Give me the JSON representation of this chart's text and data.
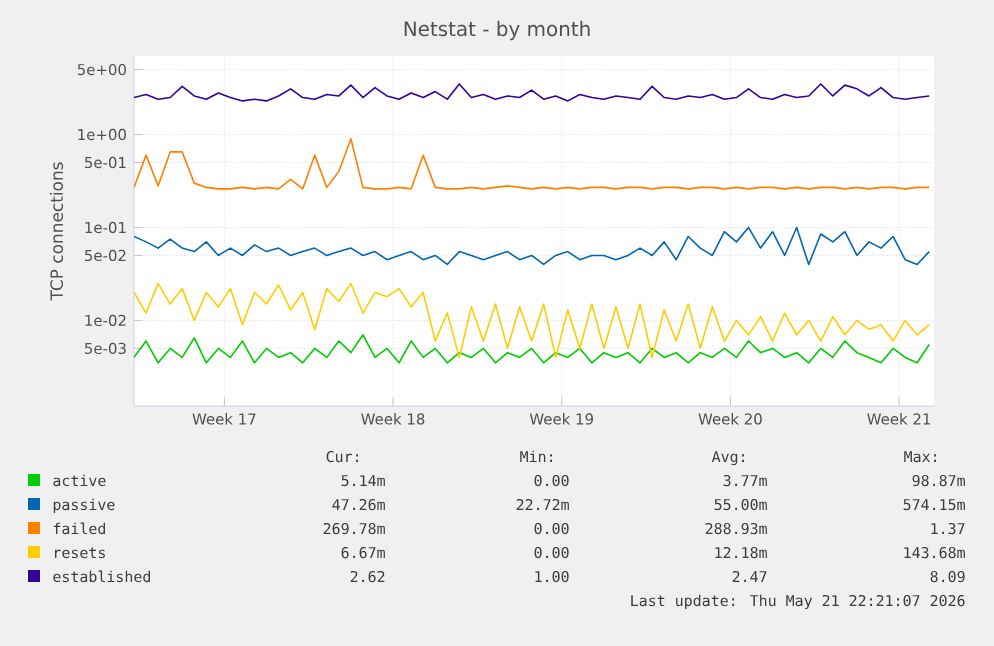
{
  "chart_data": {
    "type": "line",
    "title": "Netstat - by month",
    "ylabel": "TCP connections",
    "log": "y",
    "grid": true,
    "legend": "bottom",
    "marker": "none",
    "line_style": "solid",
    "xlim": [
      "2026-04-19T00:00",
      "2026-05-22T04:48"
    ],
    "xticks": [
      {
        "value": "2026-04-22T18:00",
        "label": "Week 17"
      },
      {
        "value": "2026-04-29T18:00",
        "label": "Week 18"
      },
      {
        "value": "2026-05-06T18:00",
        "label": "Week 19"
      },
      {
        "value": "2026-05-13T18:00",
        "label": "Week 20"
      },
      {
        "value": "2026-05-20T18:00",
        "label": "Week 21"
      }
    ],
    "ylim": [
      0.0012,
      7
    ],
    "yticks": [
      {
        "value": 0.005,
        "label": "5e-03"
      },
      {
        "value": 0.01,
        "label": "1e-02"
      },
      {
        "value": 0.05,
        "label": "5e-02"
      },
      {
        "value": 0.1,
        "label": "1e-01"
      },
      {
        "value": 0.5,
        "label": "5e-01"
      },
      {
        "value": 1,
        "label": "1e+00"
      },
      {
        "value": 5,
        "label": "5e+00"
      }
    ],
    "x": [
      "2026-04-19T00:00",
      "2026-04-19T12:00",
      "2026-04-20T00:00",
      "2026-04-20T12:00",
      "2026-04-21T00:00",
      "2026-04-21T12:00",
      "2026-04-22T00:00",
      "2026-04-22T12:00",
      "2026-04-23T00:00",
      "2026-04-23T12:00",
      "2026-04-24T00:00",
      "2026-04-24T12:00",
      "2026-04-25T00:00",
      "2026-04-25T12:00",
      "2026-04-26T00:00",
      "2026-04-26T12:00",
      "2026-04-27T00:00",
      "2026-04-27T12:00",
      "2026-04-28T00:00",
      "2026-04-28T12:00",
      "2026-04-29T00:00",
      "2026-04-29T12:00",
      "2026-04-30T00:00",
      "2026-04-30T12:00",
      "2026-05-01T00:00",
      "2026-05-01T12:00",
      "2026-05-02T00:00",
      "2026-05-02T12:00",
      "2026-05-03T00:00",
      "2026-05-03T12:00",
      "2026-05-04T00:00",
      "2026-05-04T12:00",
      "2026-05-05T00:00",
      "2026-05-05T12:00",
      "2026-05-06T00:00",
      "2026-05-06T12:00",
      "2026-05-07T00:00",
      "2026-05-07T12:00",
      "2026-05-08T00:00",
      "2026-05-08T12:00",
      "2026-05-09T00:00",
      "2026-05-09T12:00",
      "2026-05-10T00:00",
      "2026-05-10T12:00",
      "2026-05-11T00:00",
      "2026-05-11T12:00",
      "2026-05-12T00:00",
      "2026-05-12T12:00",
      "2026-05-13T00:00",
      "2026-05-13T12:00",
      "2026-05-14T00:00",
      "2026-05-14T12:00",
      "2026-05-15T00:00",
      "2026-05-15T12:00",
      "2026-05-16T00:00",
      "2026-05-16T12:00",
      "2026-05-17T00:00",
      "2026-05-17T12:00",
      "2026-05-18T00:00",
      "2026-05-18T12:00",
      "2026-05-19T00:00",
      "2026-05-19T12:00",
      "2026-05-20T00:00",
      "2026-05-20T12:00",
      "2026-05-21T00:00",
      "2026-05-21T12:00",
      "2026-05-22T00:00"
    ],
    "series": [
      {
        "name": "active",
        "color": "#00cc00",
        "values": [
          0.004,
          0.006,
          0.0035,
          0.005,
          0.004,
          0.0065,
          0.0035,
          0.005,
          0.004,
          0.006,
          0.0035,
          0.005,
          0.004,
          0.0045,
          0.0035,
          0.005,
          0.004,
          0.006,
          0.0045,
          0.007,
          0.004,
          0.005,
          0.0035,
          0.006,
          0.004,
          0.005,
          0.0035,
          0.0045,
          0.004,
          0.005,
          0.0035,
          0.0045,
          0.004,
          0.005,
          0.0035,
          0.0045,
          0.004,
          0.005,
          0.0035,
          0.0045,
          0.004,
          0.0045,
          0.0035,
          0.005,
          0.004,
          0.0045,
          0.0035,
          0.0045,
          0.004,
          0.005,
          0.004,
          0.006,
          0.0045,
          0.005,
          0.004,
          0.0045,
          0.0035,
          0.005,
          0.004,
          0.006,
          0.0045,
          0.004,
          0.0035,
          0.005,
          0.004,
          0.0035,
          0.0055
        ]
      },
      {
        "name": "passive",
        "color": "#0066b3",
        "values": [
          0.08,
          0.07,
          0.06,
          0.075,
          0.06,
          0.055,
          0.07,
          0.05,
          0.06,
          0.05,
          0.065,
          0.055,
          0.06,
          0.05,
          0.055,
          0.06,
          0.05,
          0.055,
          0.06,
          0.05,
          0.055,
          0.045,
          0.05,
          0.055,
          0.045,
          0.05,
          0.04,
          0.055,
          0.05,
          0.045,
          0.05,
          0.055,
          0.045,
          0.05,
          0.04,
          0.05,
          0.055,
          0.045,
          0.05,
          0.05,
          0.045,
          0.05,
          0.06,
          0.05,
          0.07,
          0.045,
          0.08,
          0.06,
          0.05,
          0.09,
          0.07,
          0.1,
          0.06,
          0.09,
          0.05,
          0.1,
          0.04,
          0.085,
          0.07,
          0.09,
          0.05,
          0.07,
          0.06,
          0.08,
          0.045,
          0.04,
          0.055
        ]
      },
      {
        "name": "failed",
        "color": "#ff8000",
        "values": [
          0.27,
          0.6,
          0.28,
          0.65,
          0.65,
          0.3,
          0.27,
          0.26,
          0.26,
          0.27,
          0.26,
          0.27,
          0.26,
          0.33,
          0.26,
          0.6,
          0.27,
          0.4,
          0.9,
          0.27,
          0.26,
          0.26,
          0.27,
          0.26,
          0.6,
          0.27,
          0.26,
          0.26,
          0.27,
          0.26,
          0.27,
          0.28,
          0.27,
          0.26,
          0.27,
          0.26,
          0.27,
          0.26,
          0.27,
          0.27,
          0.26,
          0.27,
          0.27,
          0.26,
          0.27,
          0.27,
          0.26,
          0.27,
          0.27,
          0.26,
          0.27,
          0.26,
          0.27,
          0.27,
          0.26,
          0.27,
          0.26,
          0.27,
          0.27,
          0.26,
          0.27,
          0.26,
          0.27,
          0.27,
          0.26,
          0.27,
          0.27
        ]
      },
      {
        "name": "resets",
        "color": "#ffcc00",
        "values": [
          0.02,
          0.012,
          0.025,
          0.015,
          0.022,
          0.01,
          0.02,
          0.014,
          0.022,
          0.009,
          0.02,
          0.015,
          0.024,
          0.013,
          0.02,
          0.008,
          0.022,
          0.016,
          0.025,
          0.012,
          0.02,
          0.018,
          0.022,
          0.014,
          0.02,
          0.006,
          0.012,
          0.004,
          0.014,
          0.006,
          0.015,
          0.005,
          0.014,
          0.006,
          0.015,
          0.004,
          0.013,
          0.005,
          0.015,
          0.005,
          0.014,
          0.005,
          0.015,
          0.004,
          0.013,
          0.006,
          0.015,
          0.005,
          0.014,
          0.006,
          0.01,
          0.007,
          0.011,
          0.006,
          0.012,
          0.007,
          0.01,
          0.006,
          0.011,
          0.007,
          0.01,
          0.008,
          0.009,
          0.006,
          0.01,
          0.007,
          0.009
        ]
      },
      {
        "name": "established",
        "color": "#330099",
        "values": [
          2.5,
          2.7,
          2.4,
          2.5,
          3.3,
          2.6,
          2.4,
          2.8,
          2.5,
          2.3,
          2.4,
          2.3,
          2.6,
          3.1,
          2.5,
          2.4,
          2.7,
          2.6,
          3.4,
          2.5,
          3.2,
          2.6,
          2.4,
          2.8,
          2.5,
          2.9,
          2.4,
          3.5,
          2.5,
          2.7,
          2.4,
          2.6,
          2.5,
          3.0,
          2.4,
          2.6,
          2.3,
          2.7,
          2.5,
          2.4,
          2.6,
          2.5,
          2.4,
          3.3,
          2.5,
          2.4,
          2.6,
          2.5,
          2.7,
          2.4,
          2.5,
          3.1,
          2.5,
          2.4,
          2.7,
          2.5,
          2.6,
          3.5,
          2.6,
          3.4,
          3.1,
          2.6,
          3.2,
          2.5,
          2.4,
          2.5,
          2.6
        ]
      }
    ],
    "annotations": [
      "Cur:",
      "Min:",
      "Avg:",
      "Max:",
      "5.14m",
      "0.00",
      "3.77m",
      "98.87m",
      "47.26m",
      "22.72m",
      "55.00m",
      "574.15m",
      "269.78m",
      "0.00",
      "288.93m",
      "1.37",
      "6.67m",
      "0.00",
      "12.18m",
      "143.68m",
      "2.62",
      "1.00",
      "2.47",
      "8.09",
      "Last update: Thu May 21 22:21:07 2026"
    ]
  }
}
